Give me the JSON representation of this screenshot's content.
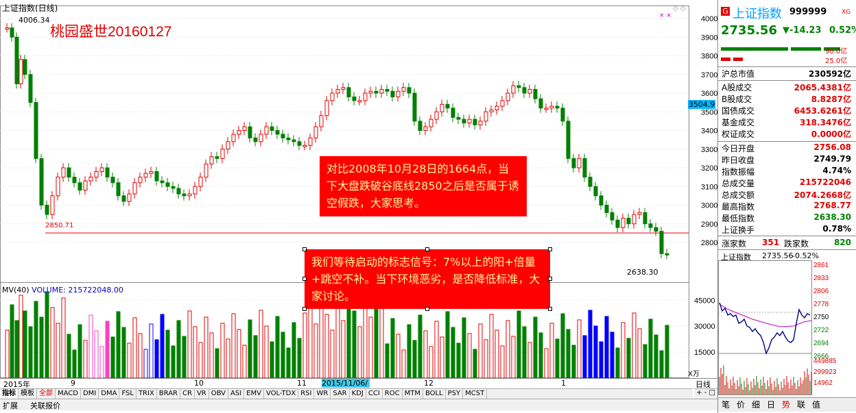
{
  "window": {
    "title": "上证指数(日线)",
    "watermark_text": "桃园盛世20160127"
  },
  "price_axis": {
    "ticks": [
      "4000",
      "3900",
      "3800",
      "3700",
      "3600",
      "3500",
      "3400",
      "3300",
      "3200",
      "3100",
      "3000",
      "2900",
      "2800"
    ],
    "current_price_label": "3504.9"
  },
  "annotations": {
    "high": "4006.34",
    "support": "2850.71",
    "low": "2638.30"
  },
  "notes": {
    "note1": "对比2008年10月28日的1664点，当下大盘跌破谷底线2850之后是否属于诱空假跌，大家思考。",
    "note2": "我们等待启动的标志信号：7%以上的阳+倍量+跳空不补。当下环境恶劣，是否降低标准，大家讨论。"
  },
  "volume": {
    "title": "MV(40)",
    "label": "VOLUME:",
    "value": "215722048.00",
    "ticks": [
      "45000",
      "30000",
      "15000"
    ],
    "unit": "X万"
  },
  "date_axis": {
    "labels": [
      "2015年",
      "9",
      "10",
      "11",
      "12",
      "1"
    ],
    "highlighted": "2015/11/06/五"
  },
  "indicator_tabs": [
    "指标",
    "模板",
    "全部",
    "MACD",
    "DMI",
    "DMA",
    "FSL",
    "TRIX",
    "BRAR",
    "CR",
    "VR",
    "OBV",
    "ASI",
    "EMV",
    "VOL-TDX",
    "RSI",
    "WR",
    "SAR",
    "KDJ",
    "CCI",
    "ROC",
    "MTM",
    "BOLL",
    "PSY",
    "MCST"
  ],
  "bottom_tabs": [
    "扩展",
    "关联报价"
  ],
  "period_label": "日线",
  "right_panel": {
    "badge": "G",
    "name": "上证指数",
    "code": "999999",
    "tag": "XG",
    "price": "2735.56",
    "change": "▼-14.23",
    "change_pct": "0.52%",
    "bar_values": [
      "90.0亿",
      "25.0亿"
    ],
    "market_cap_label": "沪总市值",
    "market_cap_value": "230592亿",
    "turnover_rows": [
      {
        "label": "A股成交",
        "value": "2065.4381亿"
      },
      {
        "label": "B股成交",
        "value": "8.8287亿"
      },
      {
        "label": "国债成交",
        "value": "6453.6261亿"
      },
      {
        "label": "基金成交",
        "value": "318.3476亿"
      },
      {
        "label": "权证成交",
        "value": "0.0000亿"
      }
    ],
    "stat_rows": [
      {
        "label": "今日开盘",
        "value": "2756.08",
        "color": "red"
      },
      {
        "label": "昨日收盘",
        "value": "2749.79",
        "color": "black"
      },
      {
        "label": "指数振幅",
        "value": "4.74%",
        "color": "black"
      },
      {
        "label": "总成交量",
        "value": "215722046",
        "color": "red"
      },
      {
        "label": "总成交额",
        "value": "2074.2668亿",
        "color": "red"
      },
      {
        "label": "最高指数",
        "value": "2768.77",
        "color": "red"
      },
      {
        "label": "最低指数",
        "value": "2638.30",
        "color": "green"
      },
      {
        "label": "上证换手",
        "value": "0.78%",
        "color": "black"
      }
    ],
    "rise_label": "涨家数",
    "rise_value": "351",
    "fall_label": "跌家数",
    "fall_value": "820",
    "mini_title": "上证指数",
    "mini_price": "2735.56",
    "mini_change": "-0.52%",
    "mini_ticks": [
      "2861",
      "2833",
      "2806",
      "2778",
      "2750",
      "2722",
      "2694",
      "2666",
      "449885",
      "299923",
      "14962"
    ],
    "bottom_buttons": [
      "笔",
      "价",
      "细",
      "日",
      "势",
      "联",
      "值"
    ]
  }
}
